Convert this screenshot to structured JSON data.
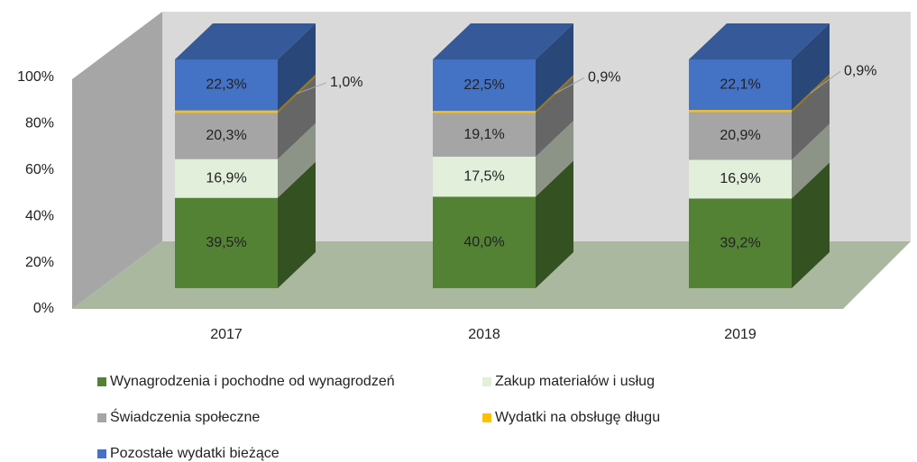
{
  "chart_data": {
    "type": "bar3d_stacked",
    "categories": [
      "2017",
      "2018",
      "2019"
    ],
    "series": [
      {
        "name": "Wynagrodzenia i pochodne od wynagrodzeń",
        "color": "#548235",
        "values": [
          39.5,
          40.0,
          39.2
        ],
        "value_labels": [
          "39,5%",
          "40,0%",
          "39,2%"
        ]
      },
      {
        "name": "Zakup materiałów i usług",
        "color": "#e2efda",
        "values": [
          16.9,
          17.5,
          16.9
        ],
        "value_labels": [
          "16,9%",
          "17,5%",
          "16,9%"
        ]
      },
      {
        "name": "Świadczenia społeczne",
        "color": "#a5a5a5",
        "values": [
          20.3,
          19.1,
          20.9
        ],
        "value_labels": [
          "20,3%",
          "19,1%",
          "20,9%"
        ]
      },
      {
        "name": "Wydatki na obsługę długu",
        "color": "#ffc000",
        "values": [
          1.0,
          0.9,
          0.9
        ],
        "value_labels": [
          "1,0%",
          "0,9%",
          "0,9%"
        ]
      },
      {
        "name": "Pozostałe wydatki bieżące",
        "color": "#4472c4",
        "values": [
          22.3,
          22.5,
          22.1
        ],
        "value_labels": [
          "22,3%",
          "22,5%",
          "22,1%"
        ]
      }
    ],
    "ylim": [
      0,
      100
    ],
    "yticks": [
      {
        "value": 0,
        "label": "0%"
      },
      {
        "value": 20,
        "label": "20%"
      },
      {
        "value": 40,
        "label": "40%"
      },
      {
        "value": 60,
        "label": "60%"
      },
      {
        "value": 80,
        "label": "80%"
      },
      {
        "value": 100,
        "label": "100%"
      }
    ]
  }
}
